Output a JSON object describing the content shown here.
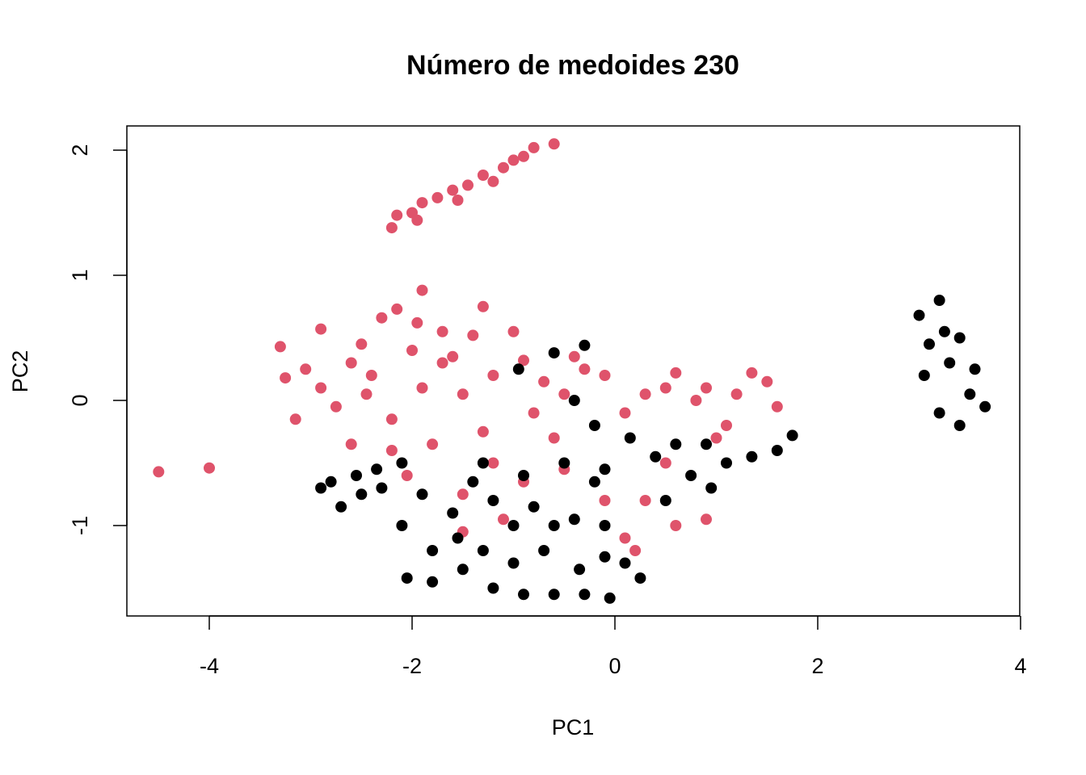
{
  "chart_data": {
    "type": "scatter",
    "title": "Número de medoides  230",
    "xlabel": "PC1",
    "ylabel": "PC2",
    "xlim": [
      -4.8,
      4.0
    ],
    "ylim": [
      -1.72,
      2.2
    ],
    "xticks": [
      -4,
      -2,
      0,
      2,
      4
    ],
    "xtick_labels": [
      "-4",
      "-2",
      "0",
      "2",
      "4"
    ],
    "yticks": [
      -1,
      0,
      1,
      2
    ],
    "ytick_labels": [
      "-1",
      "0",
      "1",
      "2"
    ],
    "grid": false,
    "legend": "none",
    "colors": {
      "cluster_1": "#000000",
      "cluster_2": "#DF536B"
    },
    "series": [
      {
        "color": "#DF536B",
        "values": [
          [
            -0.6,
            2.05
          ],
          [
            -0.8,
            2.02
          ],
          [
            -1.0,
            1.92
          ],
          [
            -1.3,
            1.8
          ],
          [
            -1.6,
            1.68
          ],
          [
            -1.9,
            1.58
          ],
          [
            -2.15,
            1.48
          ],
          [
            -2.2,
            1.38
          ],
          [
            -1.1,
            1.86
          ],
          [
            -1.45,
            1.72
          ],
          [
            -1.75,
            1.62
          ],
          [
            -2.0,
            1.5
          ],
          [
            -1.95,
            1.44
          ],
          [
            -1.55,
            1.6
          ],
          [
            -1.2,
            1.75
          ],
          [
            -0.9,
            1.95
          ],
          [
            -4.5,
            -0.57
          ],
          [
            -4.0,
            -0.54
          ],
          [
            -3.3,
            0.43
          ],
          [
            -3.25,
            0.18
          ],
          [
            -3.15,
            -0.15
          ],
          [
            -3.05,
            0.25
          ],
          [
            -2.9,
            0.57
          ],
          [
            -2.9,
            0.1
          ],
          [
            -2.75,
            -0.05
          ],
          [
            -2.6,
            0.3
          ],
          [
            -2.5,
            0.45
          ],
          [
            -2.45,
            0.05
          ],
          [
            -2.3,
            0.66
          ],
          [
            -2.2,
            -0.15
          ],
          [
            -2.15,
            0.73
          ],
          [
            -2.0,
            0.4
          ],
          [
            -1.9,
            0.1
          ],
          [
            -1.8,
            -0.35
          ],
          [
            -1.95,
            0.62
          ],
          [
            -1.7,
            0.55
          ],
          [
            -1.9,
            0.88
          ],
          [
            -1.6,
            0.35
          ],
          [
            -1.5,
            0.05
          ],
          [
            -1.4,
            0.52
          ],
          [
            -1.3,
            -0.25
          ],
          [
            -1.2,
            0.2
          ],
          [
            -1.0,
            0.55
          ],
          [
            -0.9,
            0.32
          ],
          [
            -0.8,
            -0.1
          ],
          [
            -0.7,
            0.15
          ],
          [
            -0.6,
            -0.3
          ],
          [
            -0.5,
            0.05
          ],
          [
            -0.3,
            0.25
          ],
          [
            -0.1,
            0.2
          ],
          [
            0.1,
            -0.1
          ],
          [
            0.3,
            0.05
          ],
          [
            0.5,
            0.1
          ],
          [
            0.6,
            0.22
          ],
          [
            0.8,
            0.0
          ],
          [
            0.9,
            0.1
          ],
          [
            1.1,
            -0.2
          ],
          [
            1.2,
            0.05
          ],
          [
            1.35,
            0.22
          ],
          [
            1.5,
            0.15
          ],
          [
            1.6,
            -0.05
          ],
          [
            1.0,
            -0.3
          ],
          [
            0.5,
            -0.5
          ],
          [
            0.3,
            -0.8
          ],
          [
            0.6,
            -1.0
          ],
          [
            0.1,
            -1.1
          ],
          [
            -0.1,
            -0.8
          ],
          [
            -1.2,
            -0.5
          ],
          [
            -1.5,
            -0.75
          ],
          [
            -1.1,
            -0.95
          ],
          [
            -1.5,
            -1.05
          ],
          [
            -0.9,
            -0.65
          ],
          [
            -0.5,
            -0.55
          ],
          [
            0.9,
            -0.95
          ],
          [
            -2.2,
            -0.4
          ],
          [
            -2.05,
            -0.6
          ],
          [
            0.2,
            -1.2
          ],
          [
            -2.6,
            -0.35
          ],
          [
            -1.7,
            0.3
          ],
          [
            -1.3,
            0.75
          ],
          [
            -2.4,
            0.2
          ],
          [
            -0.4,
            0.35
          ]
        ]
      },
      {
        "color": "#000000",
        "values": [
          [
            3.0,
            0.68
          ],
          [
            3.2,
            0.8
          ],
          [
            3.4,
            0.5
          ],
          [
            3.55,
            0.25
          ],
          [
            3.65,
            -0.05
          ],
          [
            3.4,
            -0.2
          ],
          [
            3.2,
            -0.1
          ],
          [
            3.05,
            0.2
          ],
          [
            3.3,
            0.3
          ],
          [
            3.25,
            0.55
          ],
          [
            3.1,
            0.45
          ],
          [
            3.5,
            0.05
          ],
          [
            -0.6,
            0.38
          ],
          [
            -0.3,
            0.44
          ],
          [
            -0.95,
            0.25
          ],
          [
            -0.4,
            0.0
          ],
          [
            -0.2,
            -0.2
          ],
          [
            0.15,
            -0.3
          ],
          [
            0.4,
            -0.45
          ],
          [
            0.75,
            -0.6
          ],
          [
            1.1,
            -0.5
          ],
          [
            1.35,
            -0.45
          ],
          [
            1.6,
            -0.4
          ],
          [
            1.75,
            -0.28
          ],
          [
            0.95,
            -0.7
          ],
          [
            0.5,
            -0.8
          ],
          [
            -0.1,
            -0.55
          ],
          [
            -0.5,
            -0.5
          ],
          [
            -0.9,
            -0.6
          ],
          [
            -1.3,
            -0.5
          ],
          [
            -2.1,
            -0.5
          ],
          [
            -2.35,
            -0.55
          ],
          [
            -2.55,
            -0.6
          ],
          [
            -2.8,
            -0.65
          ],
          [
            -2.9,
            -0.7
          ],
          [
            -2.7,
            -0.85
          ],
          [
            -2.3,
            -0.7
          ],
          [
            -1.9,
            -0.75
          ],
          [
            -1.6,
            -0.9
          ],
          [
            -1.2,
            -0.8
          ],
          [
            -0.8,
            -0.85
          ],
          [
            -0.4,
            -0.95
          ],
          [
            -0.1,
            -1.0
          ],
          [
            -2.1,
            -1.0
          ],
          [
            -1.8,
            -1.2
          ],
          [
            -2.05,
            -1.42
          ],
          [
            -1.8,
            -1.45
          ],
          [
            -1.5,
            -1.35
          ],
          [
            -1.2,
            -1.5
          ],
          [
            -0.9,
            -1.55
          ],
          [
            -0.6,
            -1.55
          ],
          [
            -0.3,
            -1.55
          ],
          [
            -0.05,
            -1.58
          ],
          [
            0.25,
            -1.42
          ],
          [
            -1.3,
            -1.2
          ],
          [
            -1.0,
            -1.3
          ],
          [
            -0.7,
            -1.2
          ],
          [
            -0.35,
            -1.35
          ],
          [
            -0.1,
            -1.25
          ],
          [
            0.1,
            -1.3
          ],
          [
            -1.0,
            -1.0
          ],
          [
            -0.6,
            -1.0
          ],
          [
            -1.4,
            -0.65
          ],
          [
            -0.2,
            -0.65
          ],
          [
            0.6,
            -0.35
          ],
          [
            0.9,
            -0.35
          ],
          [
            -2.5,
            -0.75
          ],
          [
            -1.55,
            -1.1
          ]
        ]
      }
    ]
  }
}
